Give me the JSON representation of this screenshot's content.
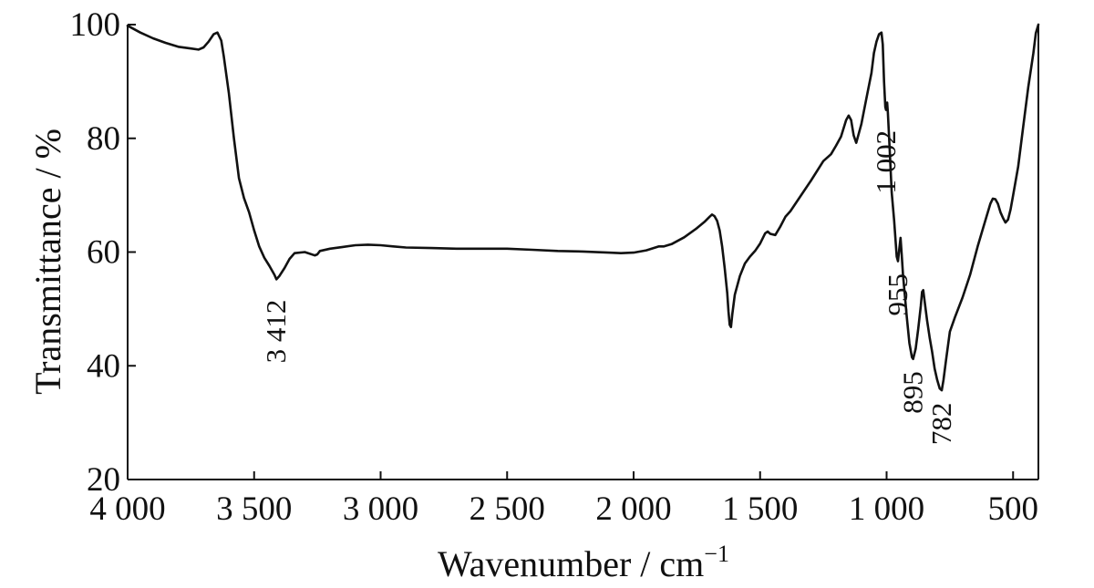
{
  "chart_data": {
    "type": "line",
    "title": "",
    "xlabel": "Wavenumber / cm",
    "xlabel_superscript": "−1",
    "ylabel": "Transmittance / %",
    "xlim": [
      4000,
      400
    ],
    "ylim": [
      20,
      100
    ],
    "x_reversed": true,
    "grid": false,
    "legend": "none",
    "x_ticks": [
      {
        "value": 4000,
        "label": "4 000"
      },
      {
        "value": 3500,
        "label": "3 500"
      },
      {
        "value": 3000,
        "label": "3 000"
      },
      {
        "value": 2500,
        "label": "2 500"
      },
      {
        "value": 2000,
        "label": "2 000"
      },
      {
        "value": 1500,
        "label": "1 500"
      },
      {
        "value": 1000,
        "label": "1 000"
      },
      {
        "value": 500,
        "label": "500"
      }
    ],
    "y_ticks": [
      {
        "value": 20,
        "label": "20"
      },
      {
        "value": 40,
        "label": "40"
      },
      {
        "value": 60,
        "label": "60"
      },
      {
        "value": 80,
        "label": "80"
      },
      {
        "value": 100,
        "label": "100"
      }
    ],
    "series": [
      {
        "color": "#111111",
        "x": [
          4000,
          3950,
          3900,
          3850,
          3800,
          3750,
          3720,
          3700,
          3680,
          3660,
          3645,
          3630,
          3620,
          3600,
          3580,
          3560,
          3540,
          3520,
          3500,
          3480,
          3460,
          3440,
          3420,
          3412,
          3400,
          3380,
          3360,
          3340,
          3300,
          3260,
          3250,
          3240,
          3200,
          3150,
          3100,
          3050,
          3000,
          2950,
          2900,
          2800,
          2700,
          2600,
          2500,
          2400,
          2300,
          2200,
          2100,
          2050,
          2000,
          1950,
          1900,
          1880,
          1850,
          1800,
          1750,
          1720,
          1700,
          1690,
          1680,
          1670,
          1660,
          1650,
          1640,
          1630,
          1625,
          1620,
          1615,
          1610,
          1600,
          1580,
          1560,
          1540,
          1520,
          1500,
          1480,
          1470,
          1460,
          1440,
          1420,
          1400,
          1380,
          1350,
          1300,
          1250,
          1220,
          1200,
          1180,
          1160,
          1150,
          1140,
          1130,
          1120,
          1100,
          1080,
          1060,
          1050,
          1040,
          1030,
          1020,
          1015,
          1010,
          1005,
          1002,
          998,
          995,
          990,
          980,
          970,
          960,
          955,
          950,
          945,
          940,
          935,
          930,
          920,
          910,
          900,
          895,
          885,
          875,
          865,
          860,
          855,
          850,
          840,
          830,
          820,
          810,
          800,
          790,
          782,
          775,
          765,
          750,
          730,
          700,
          670,
          640,
          610,
          590,
          580,
          570,
          560,
          550,
          540,
          530,
          520,
          510,
          500,
          480,
          460,
          440,
          420,
          410,
          400
        ],
        "y": [
          99.8,
          98.6,
          97.6,
          96.8,
          96.1,
          95.8,
          95.6,
          96.0,
          97.0,
          98.3,
          98.6,
          97.2,
          94.5,
          88.0,
          80.0,
          73.0,
          69.5,
          67.0,
          63.8,
          61.0,
          59.0,
          57.6,
          56.0,
          55.2,
          55.8,
          57.2,
          58.8,
          59.8,
          60.0,
          59.4,
          59.6,
          60.2,
          60.6,
          60.9,
          61.2,
          61.3,
          61.2,
          61.0,
          60.8,
          60.7,
          60.6,
          60.6,
          60.6,
          60.4,
          60.2,
          60.1,
          59.9,
          59.8,
          59.9,
          60.3,
          61.0,
          61.0,
          61.4,
          62.6,
          64.2,
          65.3,
          66.2,
          66.6,
          66.3,
          65.5,
          63.8,
          61.0,
          57.2,
          52.8,
          49.5,
          47.2,
          46.8,
          49.0,
          52.5,
          55.8,
          58.0,
          59.2,
          60.2,
          61.5,
          63.3,
          63.6,
          63.2,
          63.0,
          64.5,
          66.2,
          67.2,
          69.2,
          72.5,
          76.0,
          77.2,
          78.7,
          80.3,
          83.2,
          84.0,
          83.2,
          80.5,
          79.2,
          82.5,
          87.0,
          91.5,
          95.0,
          97.0,
          98.3,
          98.6,
          96.5,
          90.0,
          85.5,
          85.0,
          86.3,
          84.5,
          80.0,
          70.5,
          65.5,
          59.2,
          58.4,
          60.5,
          62.5,
          59.5,
          56.0,
          53.5,
          48.5,
          44.0,
          41.5,
          41.2,
          43.0,
          46.5,
          50.5,
          53.0,
          53.3,
          51.5,
          48.0,
          45.0,
          42.5,
          39.5,
          37.5,
          36.0,
          35.7,
          37.5,
          41.0,
          46.0,
          48.5,
          52.0,
          56.0,
          61.0,
          65.5,
          68.5,
          69.4,
          69.3,
          68.5,
          67.0,
          66.0,
          65.2,
          65.7,
          67.5,
          70.0,
          75.0,
          82.0,
          89.0,
          95.0,
          98.5,
          100.0
        ]
      }
    ],
    "annotations": [
      {
        "label": "3 412",
        "x": 3412,
        "y": 55.2
      },
      {
        "label": "1 002",
        "x": 1002,
        "y": 85.0
      },
      {
        "label": "955",
        "x": 955,
        "y": 58.4
      },
      {
        "label": "895",
        "x": 895,
        "y": 41.2
      },
      {
        "label": "782",
        "x": 782,
        "y": 35.7
      }
    ]
  }
}
